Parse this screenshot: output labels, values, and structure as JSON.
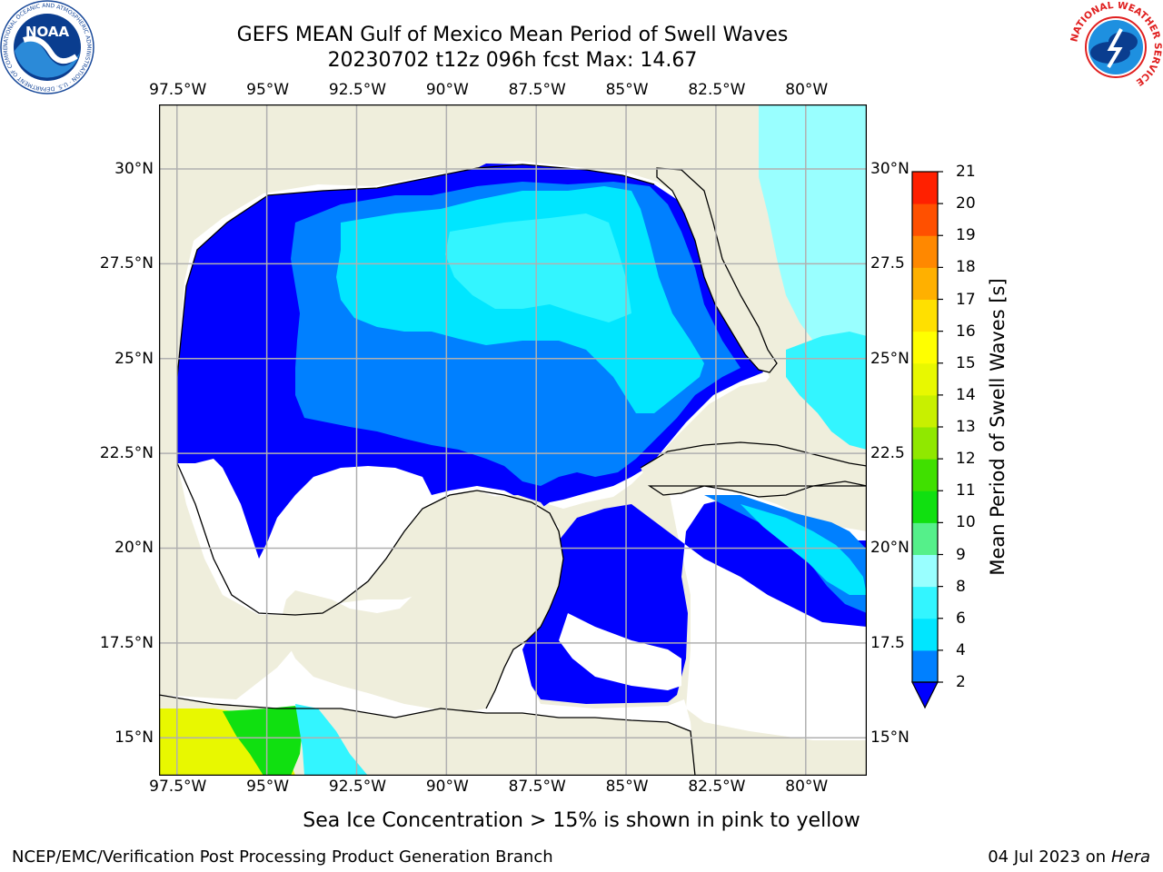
{
  "header": {
    "title_line1": "GEFS MEAN Gulf of Mexico Mean Period of Swell Waves",
    "title_line2": "20230702 t12z 096h fcst   Max: 14.67"
  },
  "logos": {
    "noaa_text": "NOAA",
    "noaa_ring": "NATIONAL OCEANIC AND ATMOSPHERIC ADMINISTRATION  ·  U.S. DEPARTMENT OF COMMERCE",
    "nws_ring": "NATIONAL WEATHER SERVICE"
  },
  "map": {
    "lon_ticks": [
      "97.5°W",
      "95°W",
      "92.5°W",
      "90°W",
      "87.5°W",
      "85°W",
      "82.5°W",
      "80°W"
    ],
    "lon_values": [
      -97.5,
      -95,
      -92.5,
      -90,
      -87.5,
      -85,
      -82.5,
      -80
    ],
    "lat_ticks_left": [
      "30°N",
      "27.5°N",
      "25°N",
      "22.5°N",
      "20°N",
      "17.5°N",
      "15°N"
    ],
    "lat_ticks_right": [
      "30°N",
      "27.5",
      "25°N",
      "22.5",
      "20°N",
      "17.5",
      "15°N"
    ],
    "lat_values": [
      30,
      27.5,
      25,
      22.5,
      20,
      17.5,
      15
    ],
    "lon_range": [
      -98,
      -78.3
    ],
    "lat_range": [
      14,
      31.7
    ],
    "grid": true,
    "colors": {
      "land": "#efeedc",
      "no_swell": "#ffffff",
      "grid": "#b0b0b0",
      "coast": "#000000"
    }
  },
  "colorbar": {
    "title": "Mean Period of Swell Waves [s]",
    "labels": [
      "2",
      "4",
      "6",
      "8",
      "9",
      "10",
      "11",
      "12",
      "13",
      "14",
      "15",
      "16",
      "17",
      "18",
      "19",
      "20",
      "21"
    ],
    "colors": [
      "#0080ff",
      "#00e6ff",
      "#33f5ff",
      "#99ffff",
      "#55f08a",
      "#10e010",
      "#40e000",
      "#90e800",
      "#c8f000",
      "#e8f800",
      "#ffff00",
      "#ffe000",
      "#ffb000",
      "#ff8800",
      "#ff5000",
      "#ff2000"
    ],
    "extend_color": "#0000ff"
  },
  "footer": {
    "note": "Sea Ice Concentration > 15% is shown in pink to yellow",
    "org": "NCEP/EMC/Verification Post Processing Product Generation Branch",
    "date": "04 Jul 2023 on ",
    "host": "Hera"
  }
}
